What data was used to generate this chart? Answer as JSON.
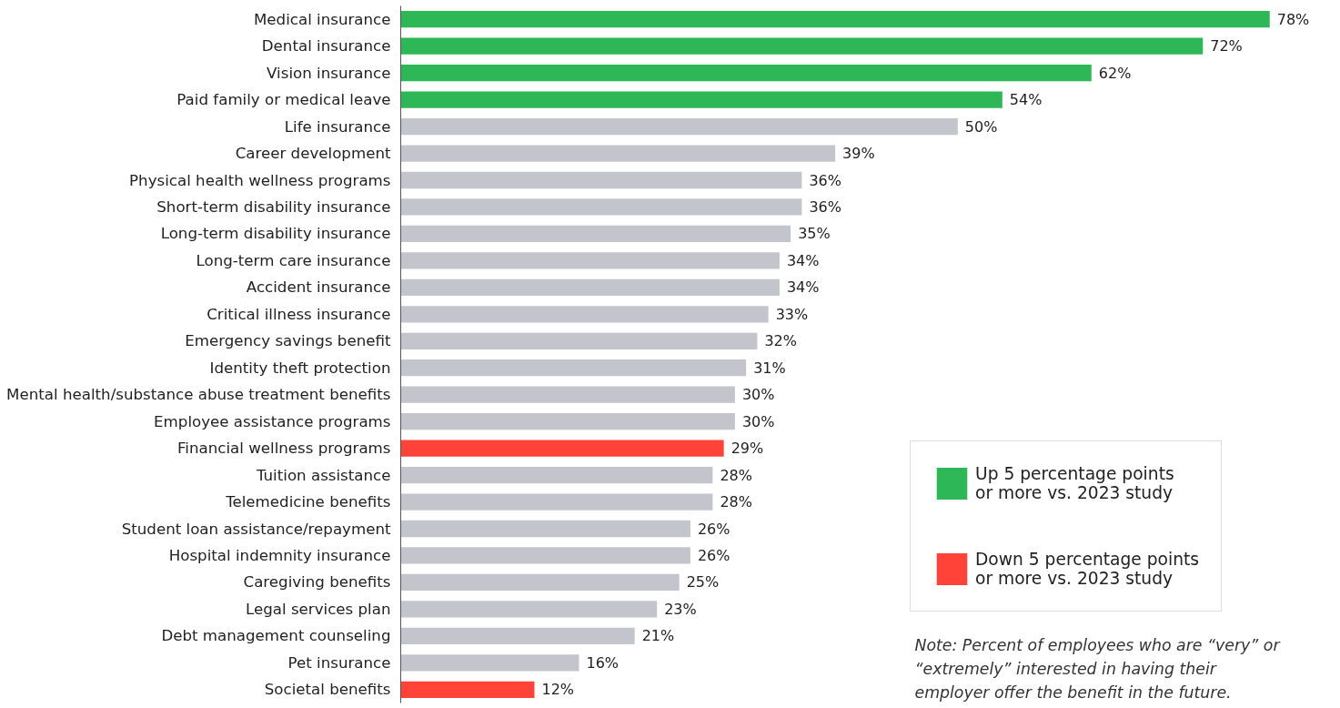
{
  "chart_data": {
    "type": "bar",
    "orientation": "horizontal",
    "categories": [
      "Medical insurance",
      "Dental insurance",
      "Vision insurance",
      "Paid family or medical leave",
      "Life insurance",
      "Career development",
      "Physical health wellness programs",
      "Short-term disability insurance",
      "Long-term disability insurance",
      "Long-term care insurance",
      "Accident insurance",
      "Critical illness insurance",
      "Emergency savings benefit",
      "Identity theft protection",
      "Mental health/substance abuse treatment benefits",
      "Employee assistance programs",
      "Financial wellness programs",
      "Tuition assistance",
      "Telemedicine benefits",
      "Student loan assistance/repayment",
      "Hospital indemnity insurance",
      "Caregiving benefits",
      "Legal services plan",
      "Debt management counseling",
      "Pet insurance",
      "Societal benefits"
    ],
    "series": [
      {
        "color": "#c4c4cc",
        "values": [
          null,
          null,
          null,
          null,
          50,
          39,
          36,
          36,
          35,
          34,
          34,
          33,
          32,
          31,
          30,
          30,
          null,
          28,
          28,
          26,
          26,
          25,
          23,
          21,
          16,
          null
        ],
        "value_labels": [
          null,
          null,
          null,
          null,
          "50%",
          "39%",
          "36%",
          "36%",
          "35%",
          "34%",
          "34%",
          "33%",
          "32%",
          "31%",
          "30%",
          "30%",
          null,
          "28%",
          "28%",
          "26%",
          "26%",
          "25%",
          "23%",
          "21%",
          "16%",
          null
        ]
      },
      {
        "name": "Up 5 percentage points\nor more vs. 2023 study",
        "color": "#2db757",
        "values": [
          78,
          72,
          62,
          54,
          null,
          null,
          null,
          null,
          null,
          null,
          null,
          null,
          null,
          null,
          null,
          null,
          null,
          null,
          null,
          null,
          null,
          null,
          null,
          null,
          null,
          null
        ],
        "value_labels": [
          "78%",
          "72%",
          "62%",
          "54%",
          null,
          null,
          null,
          null,
          null,
          null,
          null,
          null,
          null,
          null,
          null,
          null,
          null,
          null,
          null,
          null,
          null,
          null,
          null,
          null,
          null,
          null
        ]
      },
      {
        "name": "Down 5 percentage points\nor more vs. 2023 study",
        "color": "#ff4338",
        "values": [
          null,
          null,
          null,
          null,
          null,
          null,
          null,
          null,
          null,
          null,
          null,
          null,
          null,
          null,
          null,
          null,
          29,
          null,
          null,
          null,
          null,
          null,
          null,
          null,
          null,
          12
        ],
        "value_labels": [
          null,
          null,
          null,
          null,
          null,
          null,
          null,
          null,
          null,
          null,
          null,
          null,
          null,
          null,
          null,
          null,
          "29%",
          null,
          null,
          null,
          null,
          null,
          null,
          null,
          null,
          "12%"
        ]
      }
    ],
    "legend": "bottom right",
    "grid": false,
    "annotations": [
      "Note: Percent of employees who are “very” or “extremely” interested in having their employer offer the benefit in the future."
    ]
  }
}
